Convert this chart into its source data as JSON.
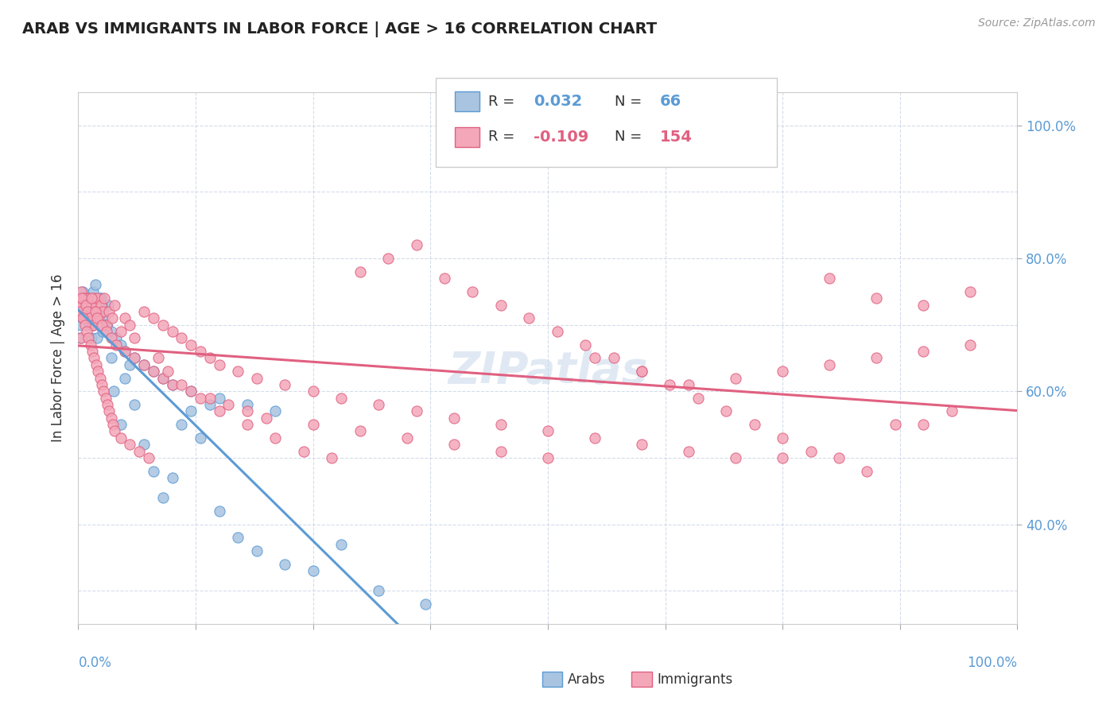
{
  "title": "ARAB VS IMMIGRANTS IN LABOR FORCE | AGE > 16 CORRELATION CHART",
  "source_text": "Source: ZipAtlas.com",
  "ylabel": "In Labor Force | Age > 16",
  "legend_r_arab": "0.032",
  "legend_n_arab": "66",
  "legend_r_imm": "-0.109",
  "legend_n_imm": "154",
  "arab_color": "#a8c4e0",
  "arab_line_color": "#5b9bd5",
  "imm_color": "#f4a7b9",
  "imm_line_color": "#e06080",
  "background_color": "#ffffff",
  "grid_color": "#d0d8e8",
  "watermark": "ZIPatlas",
  "arab_x": [
    0.2,
    0.3,
    0.4,
    0.5,
    0.6,
    0.8,
    1.0,
    1.2,
    1.4,
    1.6,
    1.8,
    2.0,
    2.2,
    2.4,
    2.6,
    2.8,
    3.0,
    3.2,
    3.5,
    3.8,
    4.5,
    5.0,
    5.5,
    6.0,
    7.0,
    8.0,
    9.0,
    10.0,
    11.0,
    12.0,
    13.0,
    14.0,
    15.0,
    17.0,
    19.0,
    22.0,
    25.0,
    28.0,
    32.0,
    37.0,
    0.3,
    0.5,
    0.7,
    0.9,
    1.1,
    1.3,
    1.5,
    1.7,
    1.9,
    2.1,
    2.3,
    2.5,
    3.0,
    3.5,
    4.0,
    4.5,
    5.0,
    6.0,
    7.0,
    8.0,
    9.0,
    10.0,
    12.0,
    15.0,
    18.0,
    21.0
  ],
  "arab_y": [
    68,
    70,
    72,
    71,
    73,
    74,
    72,
    70,
    68,
    75,
    76,
    68,
    72,
    74,
    69,
    71,
    70,
    73,
    65,
    60,
    55,
    62,
    64,
    58,
    52,
    48,
    44,
    47,
    55,
    57,
    53,
    58,
    42,
    38,
    36,
    34,
    33,
    37,
    30,
    28,
    74,
    75,
    73,
    72,
    74,
    71,
    70,
    73,
    72,
    71,
    74,
    73,
    70,
    69,
    68,
    67,
    66,
    65,
    64,
    63,
    62,
    61,
    60,
    59,
    58,
    57
  ],
  "imm_x": [
    0.1,
    0.2,
    0.3,
    0.4,
    0.5,
    0.6,
    0.7,
    0.8,
    0.9,
    1.0,
    1.1,
    1.2,
    1.3,
    1.4,
    1.5,
    1.6,
    1.7,
    1.8,
    1.9,
    2.0,
    2.2,
    2.4,
    2.6,
    2.8,
    3.0,
    3.3,
    3.6,
    3.9,
    4.5,
    5.0,
    5.5,
    6.0,
    7.0,
    8.0,
    9.0,
    10.0,
    11.0,
    12.0,
    13.0,
    14.0,
    15.0,
    17.0,
    19.0,
    22.0,
    25.0,
    28.0,
    32.0,
    36.0,
    40.0,
    45.0,
    50.0,
    55.0,
    60.0,
    65.0,
    70.0,
    75.0,
    80.0,
    85.0,
    90.0,
    95.0,
    0.2,
    0.4,
    0.6,
    0.8,
    1.0,
    1.2,
    1.4,
    1.6,
    1.8,
    2.0,
    2.5,
    3.0,
    3.5,
    4.0,
    5.0,
    6.0,
    7.0,
    8.0,
    9.0,
    10.0,
    12.0,
    14.0,
    16.0,
    18.0,
    20.0,
    25.0,
    30.0,
    35.0,
    40.0,
    45.0,
    50.0,
    55.0,
    60.0,
    65.0,
    70.0,
    75.0,
    80.0,
    85.0,
    90.0,
    95.0,
    0.3,
    0.5,
    0.7,
    0.9,
    1.1,
    1.3,
    1.5,
    1.7,
    1.9,
    2.1,
    2.3,
    2.5,
    2.7,
    2.9,
    3.1,
    3.3,
    3.5,
    3.7,
    3.9,
    4.5,
    5.5,
    6.5,
    7.5,
    8.5,
    9.5,
    11.0,
    13.0,
    15.0,
    18.0,
    21.0,
    24.0,
    27.0,
    30.0,
    33.0,
    36.0,
    39.0,
    42.0,
    45.0,
    48.0,
    51.0,
    54.0,
    57.0,
    60.0,
    63.0,
    66.0,
    69.0,
    72.0,
    75.0,
    78.0,
    81.0,
    84.0,
    87.0,
    90.0,
    93.0
  ],
  "imm_y": [
    73,
    74,
    75,
    73,
    72,
    74,
    71,
    72,
    73,
    71,
    74,
    72,
    71,
    73,
    72,
    70,
    74,
    73,
    72,
    74,
    71,
    73,
    72,
    74,
    70,
    72,
    71,
    73,
    69,
    71,
    70,
    68,
    72,
    71,
    70,
    69,
    68,
    67,
    66,
    65,
    64,
    63,
    62,
    61,
    60,
    59,
    58,
    57,
    56,
    55,
    54,
    53,
    52,
    51,
    50,
    50,
    77,
    74,
    73,
    75,
    72,
    74,
    71,
    73,
    72,
    71,
    74,
    70,
    72,
    71,
    70,
    69,
    68,
    67,
    66,
    65,
    64,
    63,
    62,
    61,
    60,
    59,
    58,
    57,
    56,
    55,
    54,
    53,
    52,
    51,
    50,
    65,
    63,
    61,
    62,
    63,
    64,
    65,
    66,
    67,
    68,
    71,
    70,
    69,
    68,
    67,
    66,
    65,
    64,
    63,
    62,
    61,
    60,
    59,
    58,
    57,
    56,
    55,
    54,
    53,
    52,
    51,
    50,
    65,
    63,
    61,
    59,
    57,
    55,
    53,
    51,
    50,
    78,
    80,
    82,
    77,
    75,
    73,
    71,
    69,
    67,
    65,
    63,
    61,
    59,
    57,
    55,
    53,
    51,
    50,
    48,
    55,
    55,
    57
  ]
}
